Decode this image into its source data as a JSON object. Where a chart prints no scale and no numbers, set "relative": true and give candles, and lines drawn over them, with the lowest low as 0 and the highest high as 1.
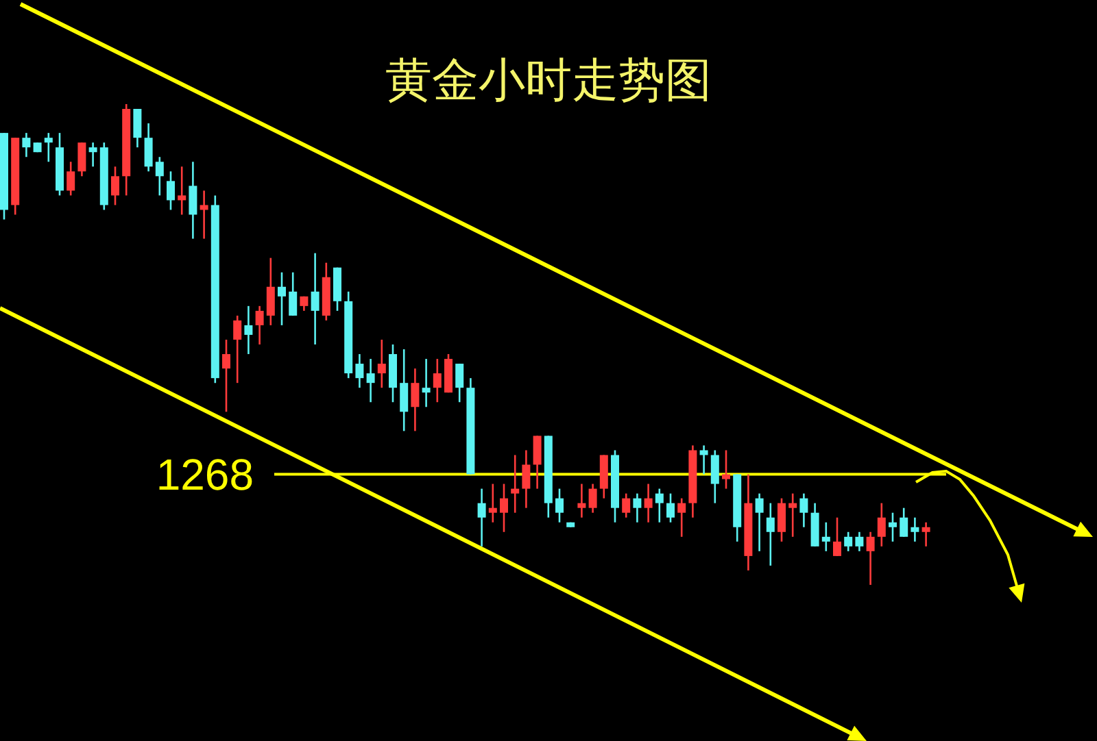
{
  "chart_data": {
    "type": "candlestick",
    "title": "黄金小时走势图",
    "relative": true,
    "categories": [
      null,
      null,
      null,
      null,
      null,
      null,
      null,
      null,
      null,
      null,
      null,
      null,
      null,
      null,
      null,
      null,
      null,
      null,
      null,
      null,
      null,
      null,
      null,
      null,
      null,
      null,
      null,
      null,
      null,
      null,
      null,
      null,
      null,
      null,
      null,
      null,
      null,
      null,
      null,
      null,
      null,
      null,
      null,
      null,
      null,
      null,
      null,
      null,
      null,
      null,
      null,
      null,
      null,
      null,
      null,
      null,
      null,
      null,
      null,
      null,
      null,
      null,
      null,
      null,
      null,
      null,
      null,
      null,
      null,
      null,
      null,
      null,
      null,
      null,
      null,
      null,
      null,
      null,
      null,
      null,
      null,
      null,
      null,
      null
    ],
    "ohlc": [
      [
        0.94,
        0.94,
        0.76,
        0.78
      ],
      [
        0.79,
        0.93,
        0.77,
        0.93
      ],
      [
        0.93,
        0.94,
        0.89,
        0.91
      ],
      [
        0.92,
        0.92,
        0.9,
        0.9
      ],
      [
        0.93,
        0.94,
        0.88,
        0.92
      ],
      [
        0.91,
        0.94,
        0.81,
        0.82
      ],
      [
        0.82,
        0.88,
        0.81,
        0.86
      ],
      [
        0.86,
        0.92,
        0.85,
        0.92
      ],
      [
        0.91,
        0.92,
        0.87,
        0.9
      ],
      [
        0.91,
        0.92,
        0.78,
        0.79
      ],
      [
        0.81,
        0.87,
        0.79,
        0.85
      ],
      [
        0.85,
        1.0,
        0.81,
        0.99
      ],
      [
        0.99,
        0.99,
        0.91,
        0.93
      ],
      [
        0.93,
        0.96,
        0.86,
        0.87
      ],
      [
        0.88,
        0.89,
        0.81,
        0.85
      ],
      [
        0.84,
        0.86,
        0.78,
        0.8
      ],
      [
        0.8,
        0.87,
        0.77,
        0.81
      ],
      [
        0.83,
        0.88,
        0.72,
        0.77
      ],
      [
        0.78,
        0.82,
        0.72,
        0.79
      ],
      [
        0.79,
        0.81,
        0.42,
        0.43
      ],
      [
        0.45,
        0.51,
        0.36,
        0.48
      ],
      [
        0.51,
        0.56,
        0.42,
        0.55
      ],
      [
        0.54,
        0.58,
        0.48,
        0.52
      ],
      [
        0.54,
        0.58,
        0.5,
        0.57
      ],
      [
        0.56,
        0.68,
        0.54,
        0.62
      ],
      [
        0.62,
        0.65,
        0.54,
        0.6
      ],
      [
        0.61,
        0.65,
        0.56,
        0.56
      ],
      [
        0.58,
        0.6,
        0.57,
        0.6
      ],
      [
        0.61,
        0.69,
        0.5,
        0.57
      ],
      [
        0.56,
        0.67,
        0.55,
        0.64
      ],
      [
        0.66,
        0.66,
        0.57,
        0.59
      ],
      [
        0.59,
        0.61,
        0.43,
        0.44
      ],
      [
        0.46,
        0.48,
        0.41,
        0.43
      ],
      [
        0.44,
        0.47,
        0.38,
        0.42
      ],
      [
        0.44,
        0.51,
        0.41,
        0.46
      ],
      [
        0.48,
        0.5,
        0.38,
        0.41
      ],
      [
        0.42,
        0.49,
        0.32,
        0.36
      ],
      [
        0.37,
        0.45,
        0.32,
        0.42
      ],
      [
        0.41,
        0.47,
        0.37,
        0.4
      ],
      [
        0.41,
        0.47,
        0.38,
        0.44
      ],
      [
        0.4,
        0.48,
        0.4,
        0.47
      ],
      [
        0.46,
        0.46,
        0.38,
        0.41
      ],
      [
        0.41,
        0.43,
        0.23,
        0.23
      ],
      [
        0.17,
        0.2,
        0.08,
        0.14
      ],
      [
        0.15,
        0.21,
        0.13,
        0.16
      ],
      [
        0.15,
        0.21,
        0.11,
        0.18
      ],
      [
        0.19,
        0.27,
        0.15,
        0.2
      ],
      [
        0.2,
        0.28,
        0.16,
        0.25
      ],
      [
        0.25,
        0.31,
        0.2,
        0.31
      ],
      [
        0.31,
        0.31,
        0.14,
        0.17
      ],
      [
        0.18,
        0.2,
        0.13,
        0.15
      ],
      [
        0.13,
        0.13,
        0.12,
        0.12
      ],
      [
        0.16,
        0.21,
        0.14,
        0.17
      ],
      [
        0.16,
        0.21,
        0.15,
        0.2
      ],
      [
        0.2,
        0.27,
        0.18,
        0.27
      ],
      [
        0.27,
        0.28,
        0.13,
        0.16
      ],
      [
        0.15,
        0.19,
        0.14,
        0.18
      ],
      [
        0.18,
        0.19,
        0.13,
        0.16
      ],
      [
        0.16,
        0.21,
        0.13,
        0.18
      ],
      [
        0.19,
        0.2,
        0.13,
        0.17
      ],
      [
        0.17,
        0.19,
        0.13,
        0.14
      ],
      [
        0.15,
        0.18,
        0.1,
        0.17
      ],
      [
        0.17,
        0.29,
        0.14,
        0.28
      ],
      [
        0.28,
        0.29,
        0.23,
        0.27
      ],
      [
        0.27,
        0.28,
        0.17,
        0.21
      ],
      [
        0.22,
        0.28,
        0.2,
        0.23
      ],
      [
        0.23,
        0.23,
        0.09,
        0.12
      ],
      [
        0.06,
        0.23,
        0.03,
        0.17
      ],
      [
        0.18,
        0.19,
        0.07,
        0.15
      ],
      [
        0.14,
        0.17,
        0.04,
        0.11
      ],
      [
        0.11,
        0.18,
        0.09,
        0.17
      ],
      [
        0.16,
        0.19,
        0.1,
        0.17
      ],
      [
        0.18,
        0.19,
        0.12,
        0.15
      ],
      [
        0.15,
        0.17,
        0.08,
        0.08
      ],
      [
        0.1,
        0.13,
        0.07,
        0.09
      ],
      [
        0.06,
        0.14,
        0.06,
        0.09
      ],
      [
        0.1,
        0.11,
        0.07,
        0.08
      ],
      [
        0.1,
        0.11,
        0.07,
        0.08
      ],
      [
        0.07,
        0.11,
        0.0,
        0.1
      ],
      [
        0.1,
        0.17,
        0.08,
        0.14
      ],
      [
        0.13,
        0.15,
        0.09,
        0.12
      ],
      [
        0.14,
        0.16,
        0.1,
        0.1
      ],
      [
        0.12,
        0.14,
        0.09,
        0.11
      ],
      [
        0.11,
        0.13,
        0.08,
        0.12
      ]
    ],
    "colors": [
      "#5cf2f2",
      "#ff3b3b",
      "#5cf2f2",
      "#5cf2f2",
      "#5cf2f2",
      "#5cf2f2",
      "#ff3b3b",
      "#ff3b3b",
      "#5cf2f2",
      "#5cf2f2",
      "#ff3b3b",
      "#ff3b3b",
      "#5cf2f2",
      "#5cf2f2",
      "#5cf2f2",
      "#5cf2f2",
      "#ff3b3b",
      "#5cf2f2",
      "#ff3b3b",
      "#5cf2f2",
      "#ff3b3b",
      "#ff3b3b",
      "#5cf2f2",
      "#ff3b3b",
      "#ff3b3b",
      "#5cf2f2",
      "#5cf2f2",
      "#ff3b3b",
      "#5cf2f2",
      "#ff3b3b",
      "#5cf2f2",
      "#5cf2f2",
      "#5cf2f2",
      "#5cf2f2",
      "#ff3b3b",
      "#5cf2f2",
      "#5cf2f2",
      "#ff3b3b",
      "#5cf2f2",
      "#ff3b3b",
      "#ff3b3b",
      "#5cf2f2",
      "#5cf2f2",
      "#5cf2f2",
      "#ff3b3b",
      "#ff3b3b",
      "#ff3b3b",
      "#ff3b3b",
      "#ff3b3b",
      "#5cf2f2",
      "#5cf2f2",
      "#5cf2f2",
      "#ff3b3b",
      "#ff3b3b",
      "#ff3b3b",
      "#5cf2f2",
      "#ff3b3b",
      "#5cf2f2",
      "#ff3b3b",
      "#5cf2f2",
      "#5cf2f2",
      "#ff3b3b",
      "#ff3b3b",
      "#5cf2f2",
      "#5cf2f2",
      "#ff3b3b",
      "#5cf2f2",
      "#ff3b3b",
      "#5cf2f2",
      "#5cf2f2",
      "#ff3b3b",
      "#ff3b3b",
      "#5cf2f2",
      "#5cf2f2",
      "#5cf2f2",
      "#ff3b3b",
      "#5cf2f2",
      "#5cf2f2",
      "#ff3b3b",
      "#ff3b3b",
      "#5cf2f2",
      "#5cf2f2",
      "#5cf2f2",
      "#ff3b3b"
    ],
    "ref_lines": [
      {
        "axis": "y",
        "value": 0.23,
        "color": "#ffff00"
      }
    ],
    "annotations": [
      "1268"
    ]
  }
}
